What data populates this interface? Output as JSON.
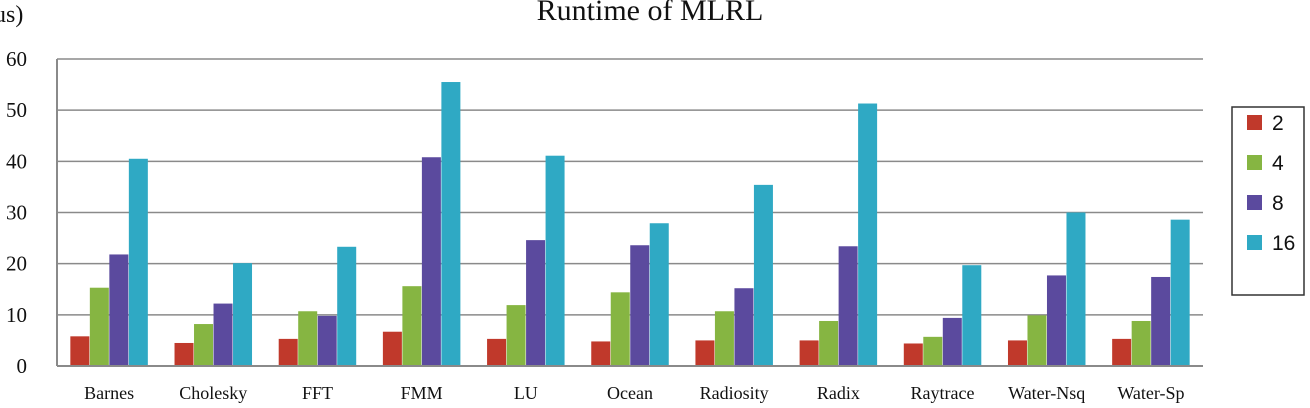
{
  "chart_data": {
    "type": "bar",
    "title": "Runtime of MLRL",
    "ylabel": "us)",
    "xlabel": "",
    "ylim": [
      0,
      60
    ],
    "yticks": [
      0,
      10,
      20,
      30,
      40,
      50,
      60
    ],
    "ytick_labels": [
      "0",
      "10",
      "20",
      "30",
      "40",
      "50",
      "60"
    ],
    "grid": true,
    "legend_position": "right",
    "categories": [
      "Barnes",
      "Cholesky",
      "FFT",
      "FMM",
      "LU",
      "Ocean",
      "Radiosity",
      "Radix",
      "Raytrace",
      "Water-Nsq",
      "Water-Sp"
    ],
    "series": [
      {
        "name": "2",
        "color": "#c0392b",
        "values": [
          5.8,
          4.5,
          5.3,
          6.7,
          5.3,
          4.8,
          5.0,
          5.0,
          4.4,
          5.0,
          5.3
        ]
      },
      {
        "name": "4",
        "color": "#86b542",
        "values": [
          15.3,
          8.2,
          10.7,
          15.6,
          11.9,
          14.4,
          10.7,
          8.8,
          5.7,
          9.9,
          8.8
        ]
      },
      {
        "name": "8",
        "color": "#5b4a9e",
        "values": [
          21.8,
          12.2,
          9.8,
          40.8,
          24.6,
          23.6,
          15.2,
          23.4,
          9.4,
          17.7,
          17.4
        ]
      },
      {
        "name": "16",
        "color": "#2fa9c4",
        "values": [
          40.5,
          20.1,
          23.3,
          55.5,
          41.1,
          27.9,
          35.4,
          51.3,
          19.7,
          30.0,
          28.6
        ]
      }
    ]
  }
}
